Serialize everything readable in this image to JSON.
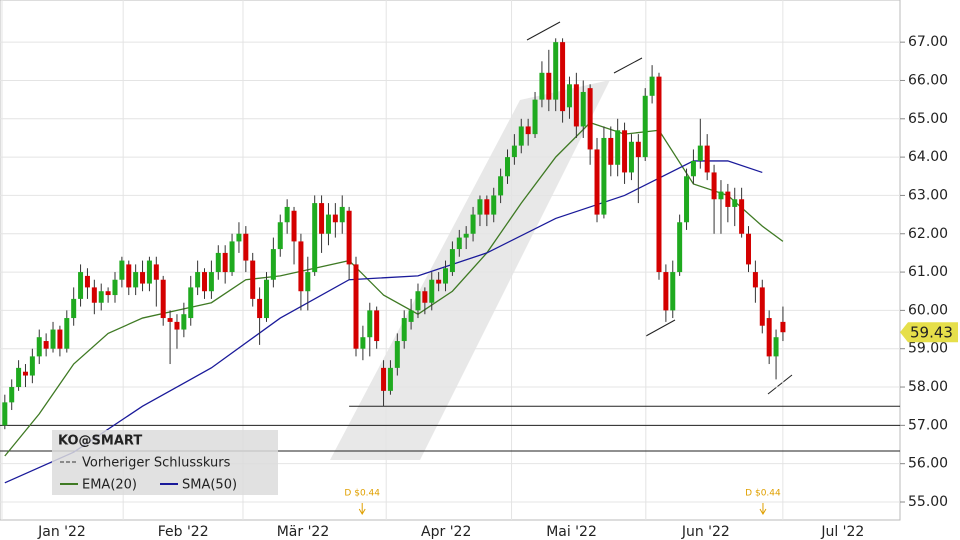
{
  "chart_data": {
    "type": "candlestick",
    "symbol": "KO@SMART",
    "legend": [
      "Vorheriger Schlusskurs"
    ],
    "open": [
      57.0,
      57.6,
      58.0,
      58.4,
      58.3,
      58.8,
      59.2,
      59.0,
      59.5,
      59.0,
      59.8,
      60.3,
      60.9,
      60.6,
      60.2,
      60.5,
      60.4,
      60.8,
      61.2,
      60.6,
      61.0,
      60.7,
      61.2,
      60.8,
      59.8,
      59.7,
      59.5,
      59.8,
      60.6,
      61.0,
      60.5,
      61.0,
      61.5,
      61.0,
      61.8,
      62.0,
      61.3,
      60.3,
      59.8,
      60.8,
      61.6,
      62.3,
      62.6,
      61.8,
      60.5,
      61.0,
      62.8,
      62.0,
      62.5,
      62.3,
      62.6,
      61.2,
      59.0,
      59.3,
      60.0,
      58.5,
      57.9,
      58.5,
      59.2,
      59.7,
      60.0,
      60.5,
      60.2,
      60.8,
      60.7,
      61.0,
      61.6,
      61.9,
      62.0,
      62.5,
      62.9,
      62.5,
      63.0,
      63.5,
      64.0,
      64.3,
      64.8,
      64.6,
      65.5,
      66.2,
      65.5,
      67.0,
      65.3,
      65.9,
      64.8,
      65.8,
      64.2,
      62.5,
      64.5,
      63.8,
      64.7,
      63.6,
      64.4,
      64.0,
      65.6,
      66.1,
      61.0,
      60.0,
      61.0,
      62.3,
      63.5,
      63.9,
      64.3,
      63.6,
      62.9,
      63.1,
      62.7,
      62.9,
      62.0,
      61.0,
      60.6,
      59.8,
      58.8,
      59.7
    ],
    "high": [
      57.8,
      58.2,
      58.7,
      58.6,
      59.0,
      59.5,
      59.4,
      59.7,
      59.6,
      60.0,
      60.6,
      61.2,
      61.1,
      60.8,
      60.7,
      60.6,
      61.0,
      61.4,
      61.3,
      61.2,
      61.3,
      61.4,
      61.4,
      60.9,
      60.0,
      59.9,
      60.2,
      60.9,
      61.3,
      61.1,
      61.3,
      61.7,
      61.7,
      62.0,
      62.3,
      62.2,
      61.5,
      60.6,
      61.0,
      61.9,
      62.5,
      62.9,
      62.7,
      62.0,
      61.4,
      63.0,
      63.0,
      62.8,
      62.8,
      63.0,
      62.7,
      61.4,
      59.6,
      60.2,
      60.1,
      58.7,
      58.7,
      59.4,
      60.0,
      60.3,
      60.7,
      60.6,
      61.0,
      61.0,
      61.3,
      61.8,
      62.1,
      62.2,
      62.7,
      63.0,
      63.0,
      63.2,
      63.7,
      64.2,
      64.6,
      65.0,
      65.0,
      65.7,
      66.5,
      66.8,
      67.1,
      67.1,
      66.1,
      66.2,
      66.0,
      65.9,
      64.5,
      64.8,
      64.8,
      65.0,
      64.9,
      64.6,
      64.6,
      65.8,
      66.4,
      66.2,
      61.2,
      61.3,
      62.5,
      63.7,
      64.2,
      65.0,
      64.6,
      63.8,
      63.4,
      63.3,
      63.2,
      63.2,
      62.2,
      61.3,
      60.8,
      60.0,
      59.5,
      60.1
    ],
    "low": [
      56.9,
      57.4,
      57.9,
      58.0,
      58.1,
      58.6,
      58.8,
      58.9,
      58.8,
      58.9,
      59.6,
      60.1,
      60.3,
      59.9,
      60.0,
      60.2,
      60.2,
      60.6,
      60.4,
      60.4,
      60.5,
      60.5,
      60.1,
      59.6,
      58.6,
      59.0,
      59.3,
      59.6,
      60.4,
      60.3,
      60.3,
      60.8,
      60.7,
      60.9,
      61.5,
      61.0,
      60.1,
      59.1,
      59.7,
      60.6,
      61.4,
      62.0,
      61.2,
      60.0,
      60.0,
      60.9,
      61.5,
      61.7,
      61.9,
      62.0,
      60.8,
      58.8,
      58.7,
      58.8,
      59.0,
      57.5,
      57.8,
      58.3,
      59.0,
      59.5,
      59.8,
      59.9,
      60.0,
      60.5,
      60.5,
      60.9,
      61.4,
      61.6,
      61.8,
      62.2,
      62.2,
      62.3,
      62.8,
      63.3,
      63.8,
      64.1,
      64.3,
      64.5,
      65.3,
      65.2,
      65.2,
      64.9,
      65.0,
      64.5,
      64.5,
      63.8,
      62.3,
      62.4,
      63.5,
      63.5,
      63.3,
      63.4,
      62.8,
      63.9,
      65.4,
      60.8,
      59.7,
      59.8,
      60.9,
      62.1,
      63.3,
      63.7,
      63.4,
      62.0,
      62.0,
      62.3,
      62.2,
      61.9,
      61.0,
      60.2,
      59.4,
      58.6,
      58.2,
      59.2
    ],
    "close": [
      57.6,
      58.0,
      58.5,
      58.3,
      58.8,
      59.3,
      59.0,
      59.5,
      59.0,
      59.8,
      60.3,
      61.0,
      60.6,
      60.2,
      60.5,
      60.4,
      60.8,
      61.3,
      60.6,
      61.0,
      60.7,
      61.3,
      60.8,
      59.8,
      59.7,
      59.5,
      59.9,
      60.6,
      61.0,
      60.5,
      61.0,
      61.5,
      61.0,
      61.8,
      62.0,
      61.3,
      60.3,
      59.8,
      60.8,
      61.6,
      62.3,
      62.7,
      61.8,
      60.5,
      61.0,
      62.8,
      62.0,
      62.5,
      62.3,
      62.7,
      61.2,
      59.0,
      59.3,
      60.0,
      59.2,
      57.9,
      58.5,
      59.2,
      59.8,
      60.0,
      60.5,
      60.2,
      60.8,
      60.7,
      61.1,
      61.6,
      61.9,
      62.0,
      62.5,
      62.9,
      62.5,
      63.0,
      63.5,
      64.0,
      64.3,
      64.8,
      64.6,
      65.5,
      66.2,
      65.5,
      67.0,
      65.2,
      65.9,
      64.8,
      65.7,
      64.2,
      62.5,
      64.5,
      63.8,
      64.7,
      63.6,
      64.4,
      64.0,
      65.6,
      66.1,
      61.0,
      60.0,
      61.0,
      62.3,
      63.5,
      63.9,
      64.3,
      63.6,
      62.9,
      63.1,
      62.7,
      62.9,
      62.0,
      61.2,
      60.6,
      59.6,
      58.8,
      59.3,
      59.43
    ],
    "up_color": "#1faa1f",
    "down_color": "#d40000",
    "series": [
      {
        "name": "EMA(20)",
        "color": "#3f7a24",
        "x": [
          0,
          5,
          10,
          15,
          20,
          25,
          30,
          35,
          40,
          45,
          50,
          55,
          60,
          65,
          70,
          75,
          80,
          85,
          90,
          95,
          100,
          105,
          110,
          113
        ],
        "values": [
          56.2,
          57.3,
          58.6,
          59.4,
          59.8,
          60.0,
          60.2,
          60.8,
          60.9,
          61.1,
          61.3,
          60.4,
          59.9,
          60.5,
          61.5,
          62.8,
          64.0,
          64.9,
          64.6,
          64.7,
          63.3,
          63.0,
          62.2,
          61.8
        ]
      },
      {
        "name": "SMA(50)",
        "color": "#1a1a9a",
        "x": [
          0,
          10,
          20,
          30,
          40,
          50,
          60,
          70,
          80,
          90,
          100,
          105,
          110
        ],
        "values": [
          55.5,
          56.3,
          57.5,
          58.5,
          59.8,
          60.8,
          60.9,
          61.5,
          62.4,
          63.0,
          63.9,
          63.9,
          63.6
        ]
      }
    ],
    "hlines": [
      57.5,
      57.0,
      56.33
    ],
    "last_price": 59.43,
    "annotations": [
      {
        "x": 51.9,
        "label": "D $0.44"
      },
      {
        "x": 110.1,
        "label": "D $0.44"
      }
    ],
    "xlim": [
      -0.7,
      130
    ],
    "xticks": [
      {
        "value": 8.3,
        "label": "Jan '22"
      },
      {
        "value": 25.9,
        "label": "Feb '22"
      },
      {
        "value": 43.3,
        "label": "Mär '22"
      },
      {
        "value": 64.1,
        "label": "Apr '22"
      },
      {
        "value": 82.3,
        "label": "Mai '22"
      },
      {
        "value": 101.8,
        "label": "Jun '22"
      },
      {
        "value": 121.7,
        "label": "Jul '22"
      }
    ],
    "ylim": [
      54.53,
      68.1
    ],
    "yticks": [
      {
        "value": 55,
        "label": "55.00"
      },
      {
        "value": 56,
        "label": "56.00"
      },
      {
        "value": 57,
        "label": "57.00"
      },
      {
        "value": 58,
        "label": "58.00"
      },
      {
        "value": 59,
        "label": "59.00"
      },
      {
        "value": 60,
        "label": "60.00"
      },
      {
        "value": 61,
        "label": "61.00"
      },
      {
        "value": 62,
        "label": "62.00"
      },
      {
        "value": 63,
        "label": "63.00"
      },
      {
        "value": 64,
        "label": "64.00"
      },
      {
        "value": 65,
        "label": "65.00"
      },
      {
        "value": 66,
        "label": "66.00"
      },
      {
        "value": 67,
        "label": "67.00"
      }
    ],
    "grid": true
  }
}
